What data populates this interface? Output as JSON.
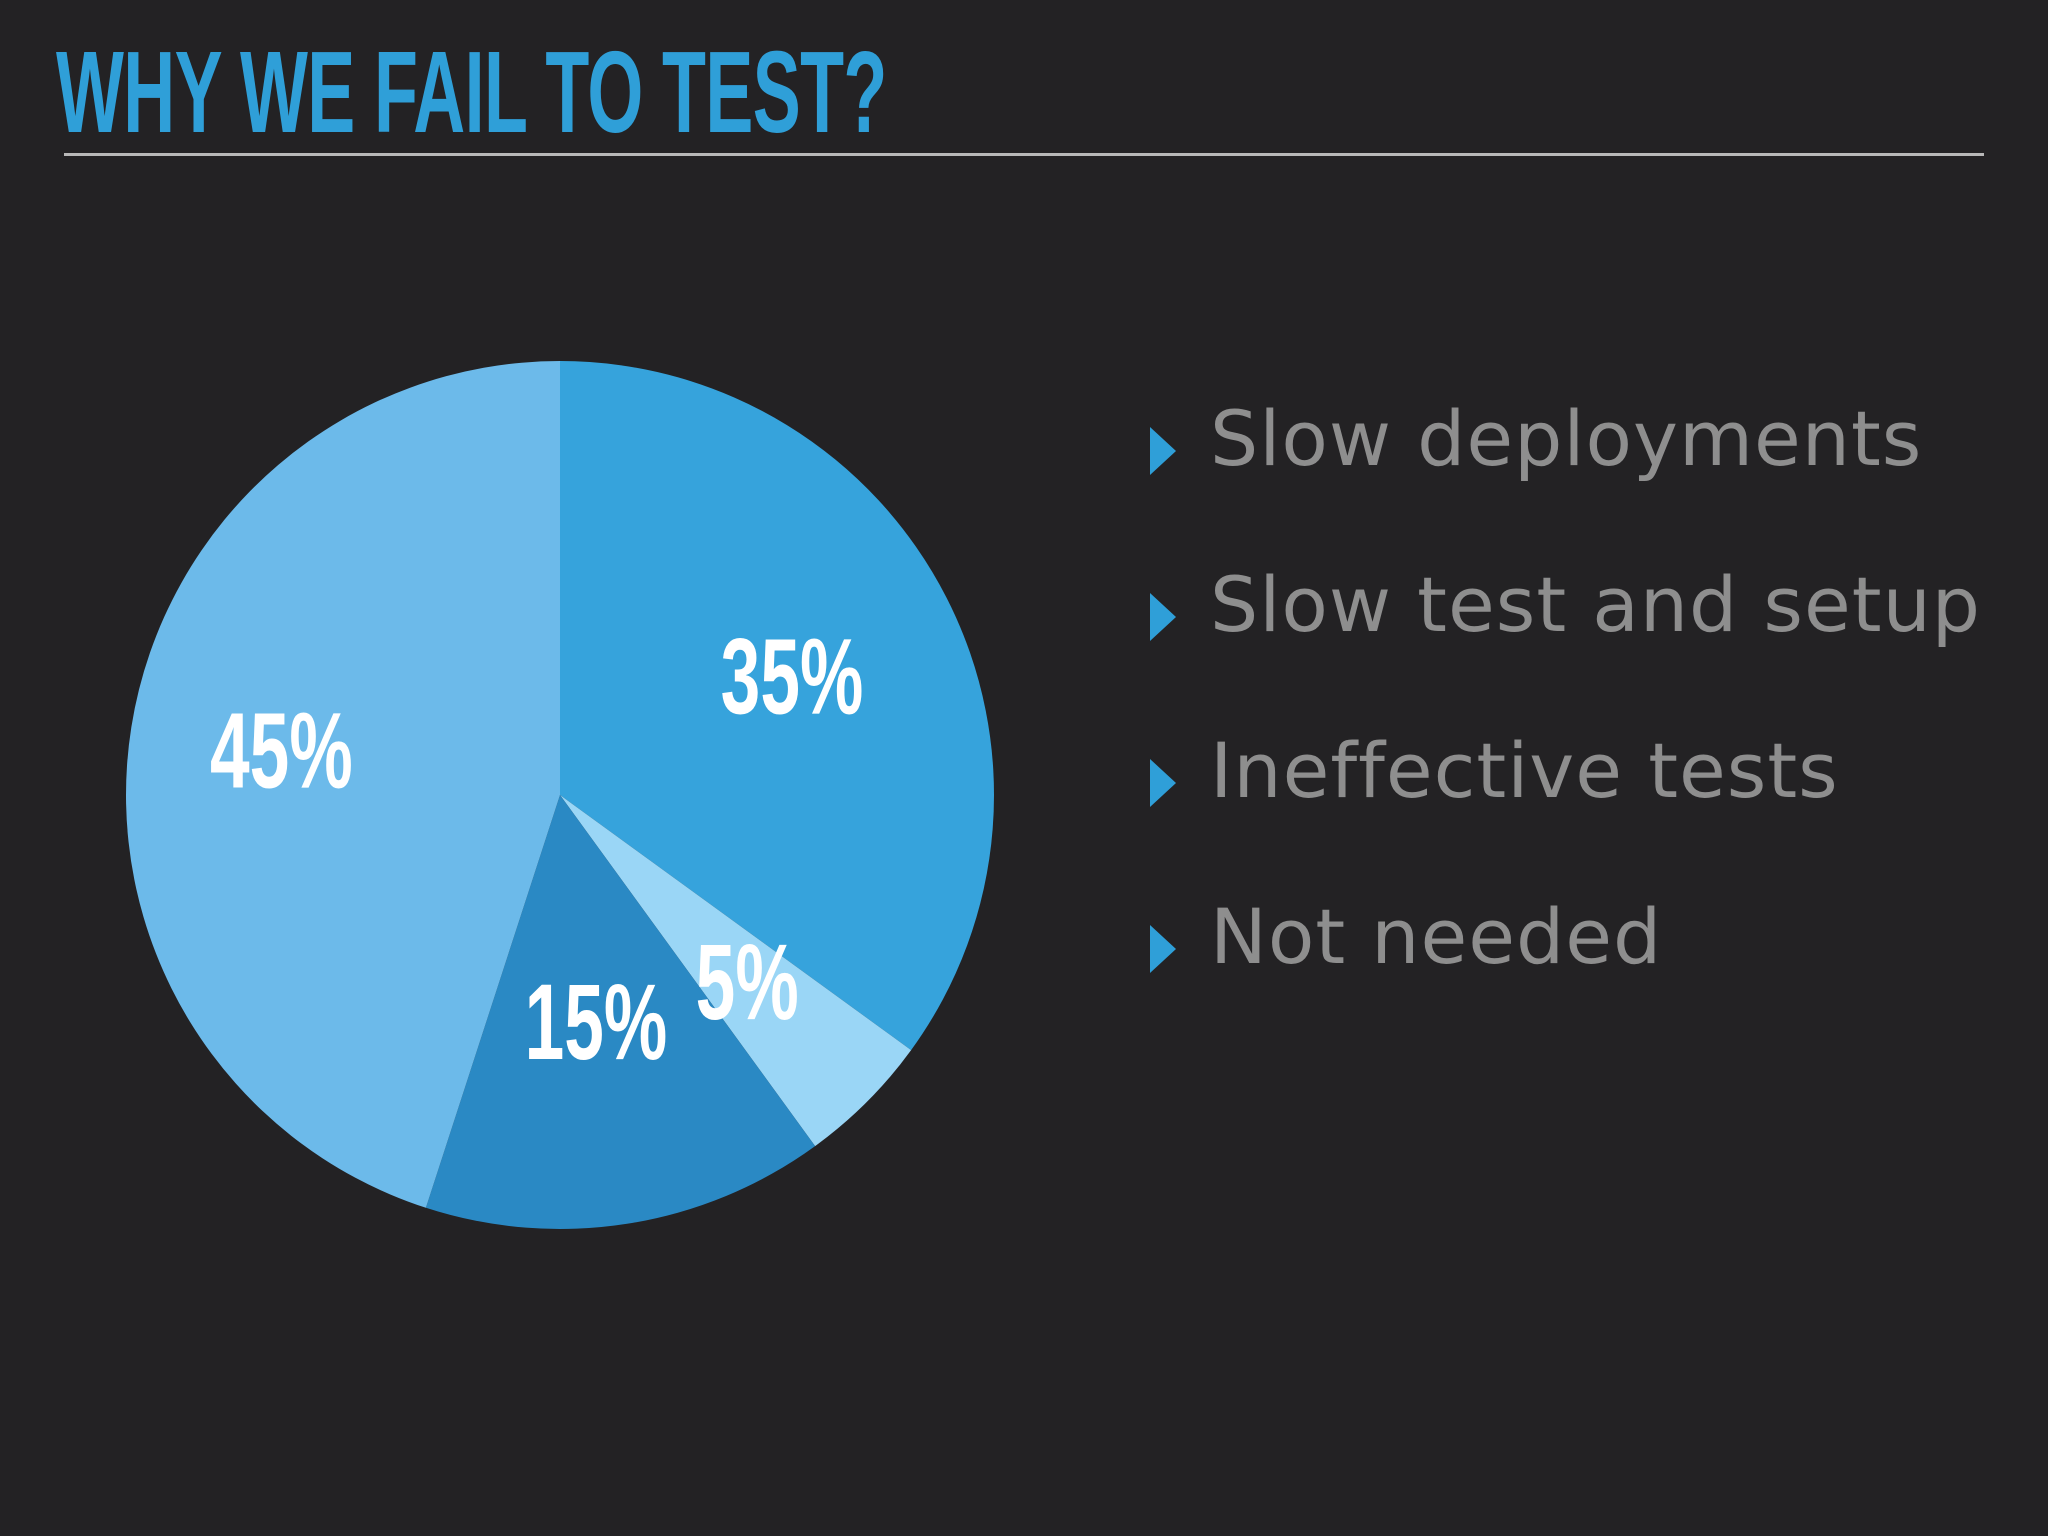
{
  "slide": {
    "title": "WHY WE FAIL TO TEST?"
  },
  "chart_data": {
    "type": "pie",
    "slices": [
      {
        "category": "Slow deployments",
        "value": 35,
        "label": "35%",
        "color": "#36a3dc"
      },
      {
        "category": "Slow test and setup",
        "value": 5,
        "label": "5%",
        "color": "#9ad6f6"
      },
      {
        "category": "Ineffective tests",
        "value": 15,
        "label": "15%",
        "color": "#2a89c4"
      },
      {
        "category": "Not needed",
        "value": 45,
        "label": "45%",
        "color": "#6cbaea"
      }
    ],
    "legend": {
      "placement": "right",
      "items": [
        "Slow deployments",
        "Slow test and setup",
        "Ineffective tests",
        "Not needed"
      ]
    }
  },
  "colors": {
    "background": "#232224",
    "accent": "#2f9fd8",
    "legend_text": "#8e8e8e",
    "rule": "#b8b8b8"
  }
}
